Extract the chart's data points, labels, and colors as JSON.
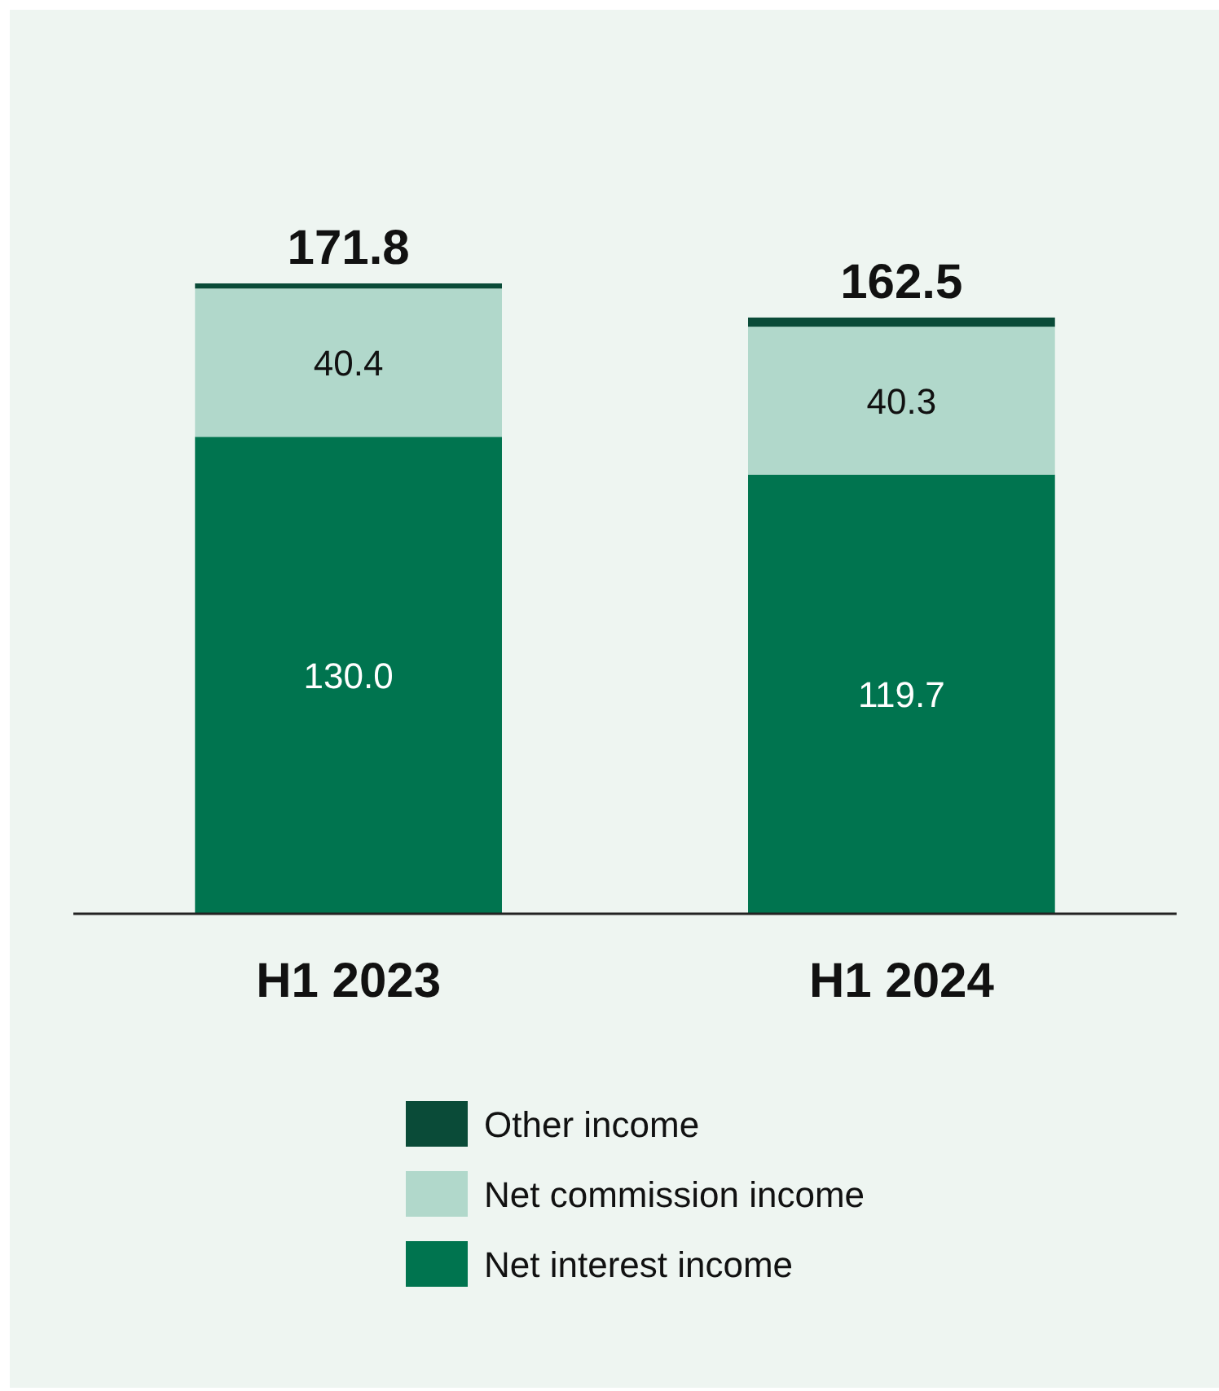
{
  "chart_data": {
    "type": "bar",
    "stacked": true,
    "categories": [
      "H1 2023",
      "H1 2024"
    ],
    "series": [
      {
        "name": "Net interest income",
        "color": "#00744f",
        "values": [
          130.0,
          119.7
        ],
        "value_labels": [
          "130.0",
          "119.7"
        ]
      },
      {
        "name": "Net commission income",
        "color": "#b1d8cb",
        "values": [
          40.4,
          40.3
        ],
        "value_labels": [
          "40.4",
          "40.3"
        ]
      },
      {
        "name": "Other income",
        "color": "#0a4b38",
        "values": [
          1.4,
          2.5
        ],
        "value_labels": [
          null,
          null
        ]
      }
    ],
    "totals": [
      "171.8",
      "162.5"
    ],
    "legend": "bottom"
  }
}
